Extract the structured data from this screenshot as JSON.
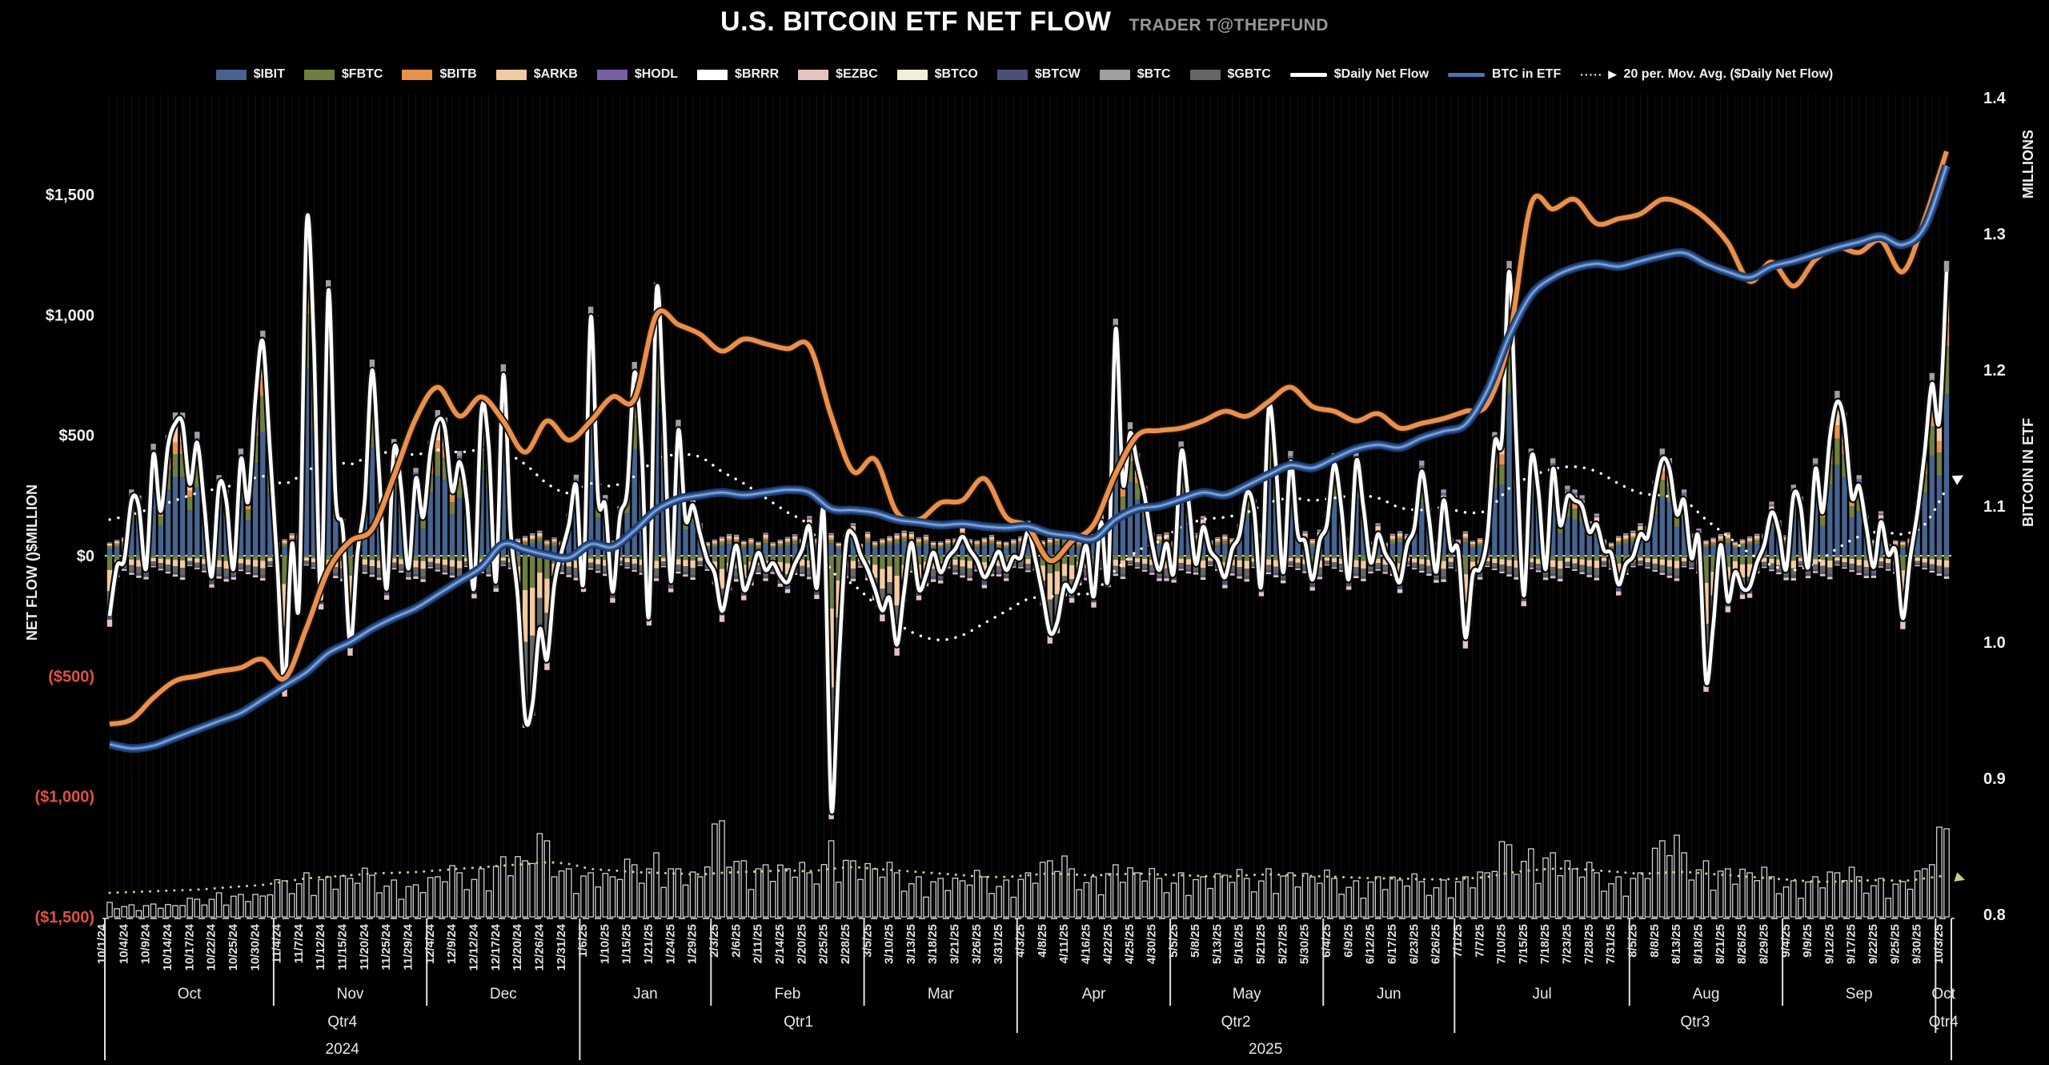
{
  "header": {
    "title": "U.S. BITCOIN ETF NET FLOW",
    "subtitle": "TRADER T@THEPFUND"
  },
  "colors": {
    "background": "#000000",
    "axis_text": "#f0f0f0",
    "negative_axis_text": "#DD5145",
    "zero_line": "#d0d0d0",
    "gridline": "rgba(255,255,255,0.07)",
    "separator": "#e0e0e0",
    "daily_net_flow_line": "#ffffff",
    "ma20_line": "#ffffff",
    "btc_in_etf_line_core": "#8aa9d6",
    "btc_in_etf_line_mid": "#3a66a8",
    "btc_in_etf_line_glow": "#1b3a6b",
    "orange_line": "#E8914E",
    "volume_bar_stroke": "#d0d0d0",
    "volume_ma_dotted": "#C9CE82"
  },
  "legend": {
    "items": [
      {
        "label": "$IBIT",
        "type": "bar",
        "color": "#46648F"
      },
      {
        "label": "$FBTC",
        "type": "bar",
        "color": "#6F7F41"
      },
      {
        "label": "$BITB",
        "type": "bar",
        "color": "#E8914A"
      },
      {
        "label": "$ARKB",
        "type": "bar",
        "color": "#F2CBA2"
      },
      {
        "label": "$HODL",
        "type": "bar",
        "color": "#7A5FA5"
      },
      {
        "label": "$BRRR",
        "type": "bar",
        "color": "#FFFFFF"
      },
      {
        "label": "$EZBC",
        "type": "bar",
        "color": "#E5C3C0"
      },
      {
        "label": "$BTCO",
        "type": "bar",
        "color": "#EFEFDA"
      },
      {
        "label": "$BTCW",
        "type": "bar",
        "color": "#4D4F79"
      },
      {
        "label": "$BTC",
        "type": "bar",
        "color": "#A0A0A2"
      },
      {
        "label": "$GBTC",
        "type": "bar",
        "color": "#656765"
      },
      {
        "label": "$Daily Net Flow",
        "type": "line",
        "color": "#FFFFFF"
      },
      {
        "label": "BTC in ETF",
        "type": "line",
        "color": "#4A74B4"
      },
      {
        "label": "20 per. Mov. Avg. ($Daily Net Flow)",
        "type": "dotted",
        "color": "#FFFFFF",
        "marker": "▶"
      }
    ]
  },
  "axes": {
    "left_title": "NET FLOW ()$MILLION",
    "right_title_top": "MILLIONS",
    "right_title_bottom": "BITCOIN IN ETF",
    "left_ticks": [
      {
        "label": "$1,500",
        "value": 1500,
        "negative": false
      },
      {
        "label": "$1,000",
        "value": 1000,
        "negative": false
      },
      {
        "label": "$500",
        "value": 500,
        "negative": false
      },
      {
        "label": "$0",
        "value": 0,
        "negative": false
      },
      {
        "label": "($500)",
        "value": -500,
        "negative": true
      },
      {
        "label": "($1,000)",
        "value": -1000,
        "negative": true
      },
      {
        "label": "($1,500)",
        "value": -1500,
        "negative": true
      }
    ],
    "right_ticks": [
      {
        "label": "1.4",
        "value": 1.4
      },
      {
        "label": "1.3",
        "value": 1.3
      },
      {
        "label": "1.2",
        "value": 1.2
      },
      {
        "label": "1.1",
        "value": 1.1
      },
      {
        "label": "1.0",
        "value": 1.0
      },
      {
        "label": "0.9",
        "value": 0.9
      },
      {
        "label": "0.8",
        "value": 0.8
      }
    ]
  },
  "chart_data": {
    "type": "bar",
    "title": "U.S. BITCOIN ETF NET FLOW",
    "xlabel": "",
    "ylabel_left": "NET FLOW ()$MILLION",
    "ylabel_right": "BITCOIN IN ETF (MILLIONS)",
    "left_axis_range_musd": [
      -1500,
      1500
    ],
    "right_axis_range_millions": [
      0.8,
      1.4
    ],
    "grid": "vertical-daily-faint",
    "legend_position": "top",
    "dates": [
      "10/1/24",
      "10/4/24",
      "10/9/24",
      "10/14/24",
      "10/17/24",
      "10/22/24",
      "10/25/24",
      "10/30/24",
      "11/4/24",
      "11/7/24",
      "11/12/24",
      "11/15/24",
      "11/20/24",
      "11/25/24",
      "11/29/24",
      "12/4/24",
      "12/9/24",
      "12/12/24",
      "12/17/24",
      "12/20/24",
      "12/26/24",
      "12/31/24",
      "1/6/25",
      "1/10/25",
      "1/15/25",
      "1/21/25",
      "1/24/25",
      "1/29/25",
      "2/3/25",
      "2/6/25",
      "2/11/25",
      "2/14/25",
      "2/20/25",
      "2/25/25",
      "2/28/25",
      "3/5/25",
      "3/10/25",
      "3/13/25",
      "3/18/25",
      "3/21/25",
      "3/26/25",
      "3/31/25",
      "4/3/25",
      "4/8/25",
      "4/11/25",
      "4/16/25",
      "4/22/25",
      "4/25/25",
      "4/30/25",
      "5/5/25",
      "5/8/25",
      "5/13/25",
      "5/16/25",
      "5/21/25",
      "5/27/25",
      "5/30/25",
      "6/4/25",
      "6/9/25",
      "6/12/25",
      "6/17/25",
      "6/23/25",
      "6/26/25",
      "7/1/25",
      "7/7/25",
      "7/10/25",
      "7/15/25",
      "7/18/25",
      "7/23/25",
      "7/28/25",
      "7/31/25",
      "8/5/25",
      "8/8/25",
      "8/13/25",
      "8/18/25",
      "8/21/25",
      "8/26/25",
      "8/29/25",
      "9/4/25",
      "9/9/25",
      "9/12/25",
      "9/17/25",
      "9/22/25",
      "9/25/25",
      "9/30/25",
      "10/3/25"
    ],
    "series": [
      {
        "name": "$Daily Net Flow (est., $M)",
        "values": [
          -250,
          230,
          420,
          550,
          470,
          290,
          400,
          890,
          -540,
          1370,
          1100,
          -370,
          770,
          440,
          320,
          560,
          390,
          600,
          750,
          -670,
          -430,
          130,
          990,
          -150,
          760,
          1090,
          520,
          90,
          -230,
          -140,
          -60,
          -110,
          120,
          -1050,
          90,
          -140,
          -370,
          -140,
          -70,
          80,
          -90,
          -60,
          100,
          -320,
          -150,
          -170,
          940,
          380,
          -60,
          430,
          120,
          -90,
          260,
          610,
          390,
          -100,
          380,
          390,
          90,
          -110,
          350,
          230,
          -340,
          80,
          1180,
          400,
          360,
          230,
          130,
          -120,
          90,
          400,
          230,
          -520,
          -190,
          -130,
          180,
          250,
          360,
          640,
          290,
          140,
          -260,
          430,
          1180
        ]
      },
      {
        "name": "20 per. Mov. Avg. ($Daily Net Flow) (est., $M)",
        "values": [
          150,
          170,
          200,
          230,
          260,
          280,
          300,
          330,
          300,
          350,
          400,
          380,
          420,
          430,
          420,
          440,
          430,
          440,
          430,
          380,
          300,
          260,
          300,
          290,
          330,
          400,
          420,
          410,
          350,
          300,
          240,
          180,
          120,
          -60,
          -120,
          -200,
          -280,
          -330,
          -350,
          -330,
          -280,
          -230,
          -180,
          -170,
          -160,
          -150,
          -60,
          20,
          60,
          120,
          150,
          160,
          180,
          220,
          240,
          230,
          240,
          250,
          240,
          200,
          190,
          200,
          180,
          190,
          280,
          330,
          360,
          370,
          350,
          300,
          260,
          250,
          230,
          150,
          80,
          10,
          -40,
          -60,
          -30,
          30,
          80,
          100,
          90,
          130,
          280
        ]
      },
      {
        "name": "BTC in ETF (est., millions, right axis)",
        "values": [
          0.925,
          0.922,
          0.924,
          0.93,
          0.936,
          0.942,
          0.948,
          0.958,
          0.968,
          0.978,
          0.992,
          1.0,
          1.01,
          1.018,
          1.025,
          1.035,
          1.045,
          1.055,
          1.072,
          1.068,
          1.064,
          1.062,
          1.072,
          1.07,
          1.082,
          1.097,
          1.105,
          1.108,
          1.11,
          1.108,
          1.11,
          1.112,
          1.11,
          1.098,
          1.097,
          1.095,
          1.09,
          1.088,
          1.086,
          1.087,
          1.085,
          1.084,
          1.085,
          1.08,
          1.078,
          1.076,
          1.09,
          1.098,
          1.1,
          1.105,
          1.11,
          1.108,
          1.115,
          1.123,
          1.13,
          1.128,
          1.135,
          1.142,
          1.145,
          1.143,
          1.15,
          1.155,
          1.16,
          1.185,
          1.225,
          1.255,
          1.268,
          1.275,
          1.278,
          1.276,
          1.28,
          1.284,
          1.286,
          1.278,
          1.272,
          1.268,
          1.276,
          1.28,
          1.285,
          1.29,
          1.294,
          1.298,
          1.292,
          1.305,
          1.35
        ]
      },
      {
        "name": "unlabeled smooth orange line (est., left-axis $M units)",
        "values": [
          -700,
          -680,
          -590,
          -520,
          -500,
          -480,
          -465,
          -430,
          -510,
          -300,
          -60,
          60,
          110,
          330,
          570,
          700,
          580,
          660,
          560,
          430,
          560,
          480,
          560,
          660,
          650,
          1000,
          960,
          920,
          850,
          900,
          880,
          860,
          870,
          580,
          350,
          400,
          180,
          150,
          220,
          230,
          320,
          160,
          120,
          -20,
          60,
          130,
          340,
          500,
          520,
          530,
          560,
          600,
          580,
          640,
          700,
          620,
          600,
          560,
          590,
          530,
          550,
          570,
          600,
          630,
          900,
          1460,
          1440,
          1480,
          1380,
          1400,
          1420,
          1480,
          1460,
          1400,
          1300,
          1140,
          1220,
          1120,
          1230,
          1280,
          1260,
          1310,
          1180,
          1400,
          1680
        ]
      },
      {
        "name": "bottom hollow volume-style bars (est., relative px height)",
        "values": [
          18,
          15,
          16,
          14,
          22,
          30,
          28,
          26,
          45,
          55,
          50,
          48,
          52,
          46,
          40,
          50,
          55,
          60,
          75,
          70,
          95,
          60,
          55,
          50,
          65,
          80,
          60,
          50,
          120,
          70,
          65,
          60,
          55,
          95,
          70,
          60,
          55,
          50,
          48,
          45,
          50,
          46,
          55,
          70,
          60,
          50,
          65,
          55,
          48,
          55,
          50,
          52,
          48,
          60,
          55,
          50,
          48,
          45,
          50,
          46,
          44,
          46,
          50,
          55,
          90,
          85,
          80,
          60,
          55,
          50,
          55,
          95,
          80,
          70,
          60,
          55,
          50,
          45,
          50,
          55,
          50,
          48,
          44,
          60,
          110
        ]
      },
      {
        "name": "yellow-green dotted avg of bottom bars (est., relative px height)",
        "values": [
          30,
          31,
          32,
          33,
          34,
          36,
          38,
          40,
          44,
          48,
          50,
          52,
          54,
          55,
          56,
          58,
          60,
          62,
          64,
          66,
          68,
          66,
          60,
          58,
          56,
          55,
          54,
          53,
          55,
          56,
          57,
          58,
          57,
          60,
          62,
          60,
          58,
          56,
          54,
          52,
          50,
          50,
          52,
          54,
          53,
          52,
          53,
          54,
          53,
          52,
          51,
          50,
          52,
          53,
          52,
          51,
          50,
          49,
          48,
          48,
          47,
          47,
          48,
          50,
          55,
          58,
          60,
          60,
          58,
          56,
          54,
          55,
          56,
          54,
          52,
          50,
          48,
          46,
          44,
          44,
          45,
          46,
          45,
          48,
          52
        ]
      }
    ],
    "months": [
      {
        "label": "Oct",
        "ticks": 8
      },
      {
        "label": "Nov",
        "ticks": 7
      },
      {
        "label": "Dec",
        "ticks": 7
      },
      {
        "label": "Jan",
        "ticks": 6
      },
      {
        "label": "Feb",
        "ticks": 7
      },
      {
        "label": "Mar",
        "ticks": 7
      },
      {
        "label": "Apr",
        "ticks": 7
      },
      {
        "label": "May",
        "ticks": 7
      },
      {
        "label": "Jun",
        "ticks": 6
      },
      {
        "label": "Jul",
        "ticks": 8
      },
      {
        "label": "Aug",
        "ticks": 7
      },
      {
        "label": "Sep",
        "ticks": 7
      },
      {
        "label": "Oct",
        "ticks": 1
      }
    ],
    "quarters": [
      {
        "label": "Qtr4",
        "month_span": [
          0,
          2
        ]
      },
      {
        "label": "Qtr1",
        "month_span": [
          3,
          5
        ]
      },
      {
        "label": "Qtr2",
        "month_span": [
          6,
          8
        ]
      },
      {
        "label": "Qtr3",
        "month_span": [
          9,
          11
        ]
      },
      {
        "label": "Qtr4",
        "month_span": [
          12,
          12
        ]
      }
    ],
    "years": [
      {
        "label": "2024",
        "month_span": [
          0,
          2
        ]
      },
      {
        "label": "2025",
        "month_span": [
          3,
          12
        ]
      }
    ],
    "bar_composition_approx": {
      "positive": [
        [
          "$IBIT",
          0.55
        ],
        [
          "$FBTC",
          0.16
        ],
        [
          "$BITB",
          0.08
        ],
        [
          "$ARKB",
          0.12
        ],
        [
          "$HODL",
          0.04
        ],
        [
          "$BTC",
          0.05
        ]
      ],
      "negative": [
        [
          "$FBTC",
          0.2
        ],
        [
          "$ARKB",
          0.3
        ],
        [
          "$GBTC",
          0.3
        ],
        [
          "$BTCW",
          0.1
        ],
        [
          "$EZBC",
          0.1
        ]
      ]
    },
    "render_params": {
      "flow_wiggle": [
        1,
        0.5,
        -0.25,
        1.1,
        0.7,
        -0.15,
        1.2,
        0.4,
        0.9,
        -0.3,
        1.05,
        0.6
      ],
      "vol_wiggle": [
        1,
        0.6,
        0.8,
        1.15,
        0.5,
        0.9,
        1.25,
        0.7,
        1.05,
        0.45,
        0.85,
        1.2
      ],
      "pos_pad": 45,
      "neg_pad": 45,
      "pos_remnant_base": 55,
      "pos_remnant_mod": 50,
      "neg_remnant_base": 40,
      "neg_remnant_mod": 70
    }
  }
}
